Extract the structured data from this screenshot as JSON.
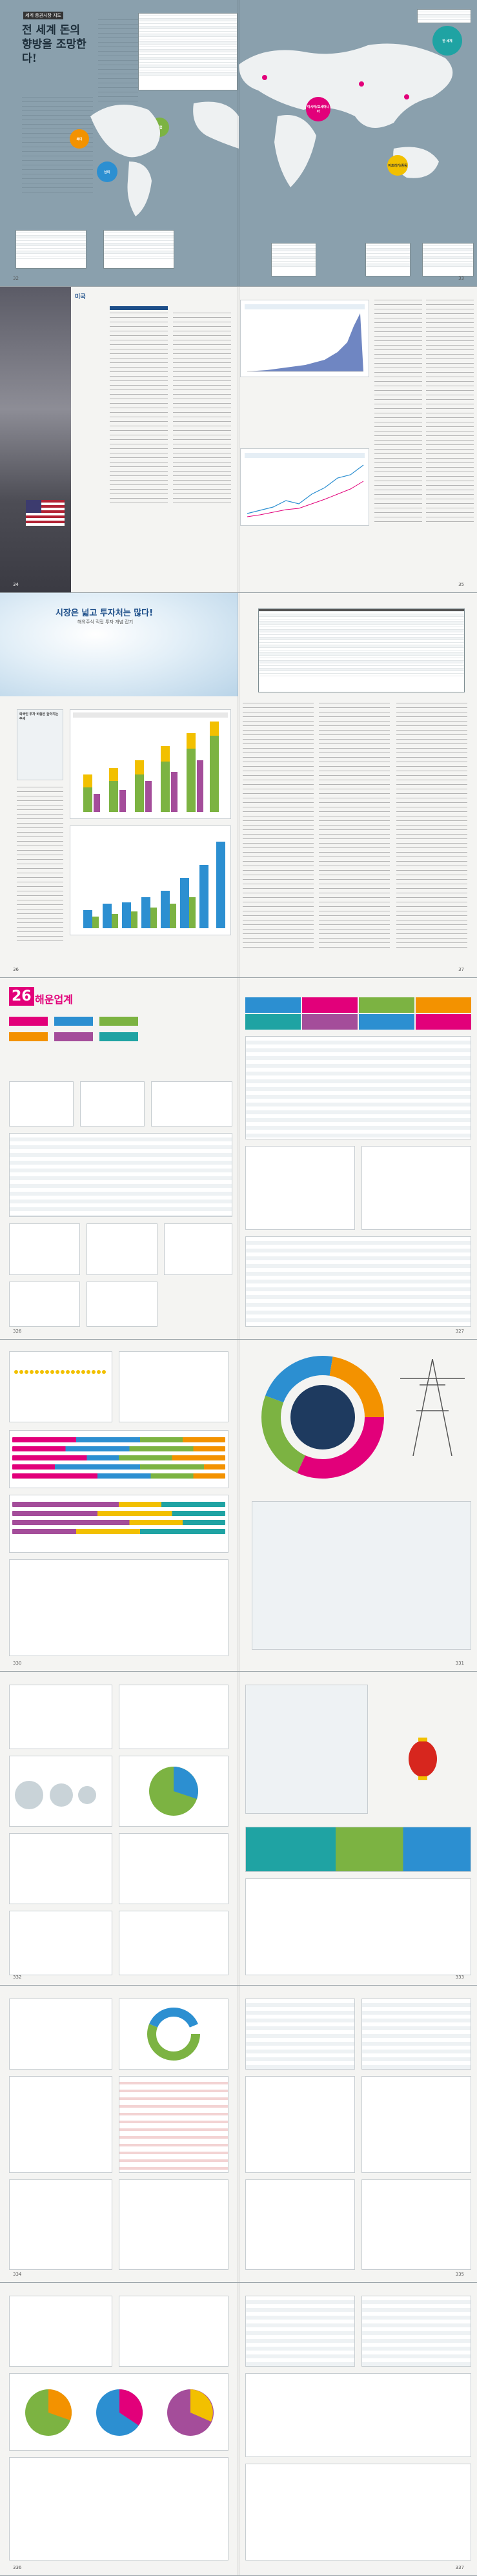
{
  "spread1": {
    "left": {
      "section_tag": "세계 증권시장 지도",
      "headline": "전 세계 돈의 향방을 조망한다!",
      "page_number": "32"
    },
    "right": {
      "map_header": "",
      "region_labels": [
        "유럽",
        "아시아/오세아니아",
        "북미",
        "남미",
        "아프리카/중동"
      ],
      "corner_label": "한 세계",
      "page_number": "33"
    }
  },
  "spread2": {
    "left": {
      "page_number": "34",
      "section_tag": "미국"
    },
    "right": {
      "page_number": "35"
    }
  },
  "spread3": {
    "left": {
      "headline": "시장은 넓고 투자처는 많다!",
      "subheadline": "해외주식 직접 투자 개념 잡기",
      "sidebar_title": "외국인 투자 비중은 높아지는 추세",
      "page_number": "36"
    },
    "right": {
      "page_number": "37"
    }
  },
  "spread4": {
    "left": {
      "chapter_number": "26",
      "chapter_title": "해운업계",
      "page_number": "326"
    },
    "right": {
      "page_number": "327"
    }
  },
  "spread5": {
    "left": {
      "page_number": "330"
    },
    "right": {
      "page_number": "331"
    }
  },
  "spread6": {
    "left": {
      "page_number": "332"
    },
    "right": {
      "page_number": "333"
    }
  },
  "spread7": {
    "left": {
      "page_number": "334"
    },
    "right": {
      "page_number": "335"
    }
  },
  "spread8": {
    "left": {
      "page_number": "336"
    },
    "right": {
      "page_number": "337"
    }
  },
  "colors": {
    "page_bg": "#f4f4f2",
    "map_bg": "#7f98a6",
    "pink": "#e2007a",
    "green": "#7cb342",
    "blue": "#2c8fd1",
    "orange": "#f39200",
    "navy": "#1e3a5f",
    "teal": "#1fa3a3"
  }
}
